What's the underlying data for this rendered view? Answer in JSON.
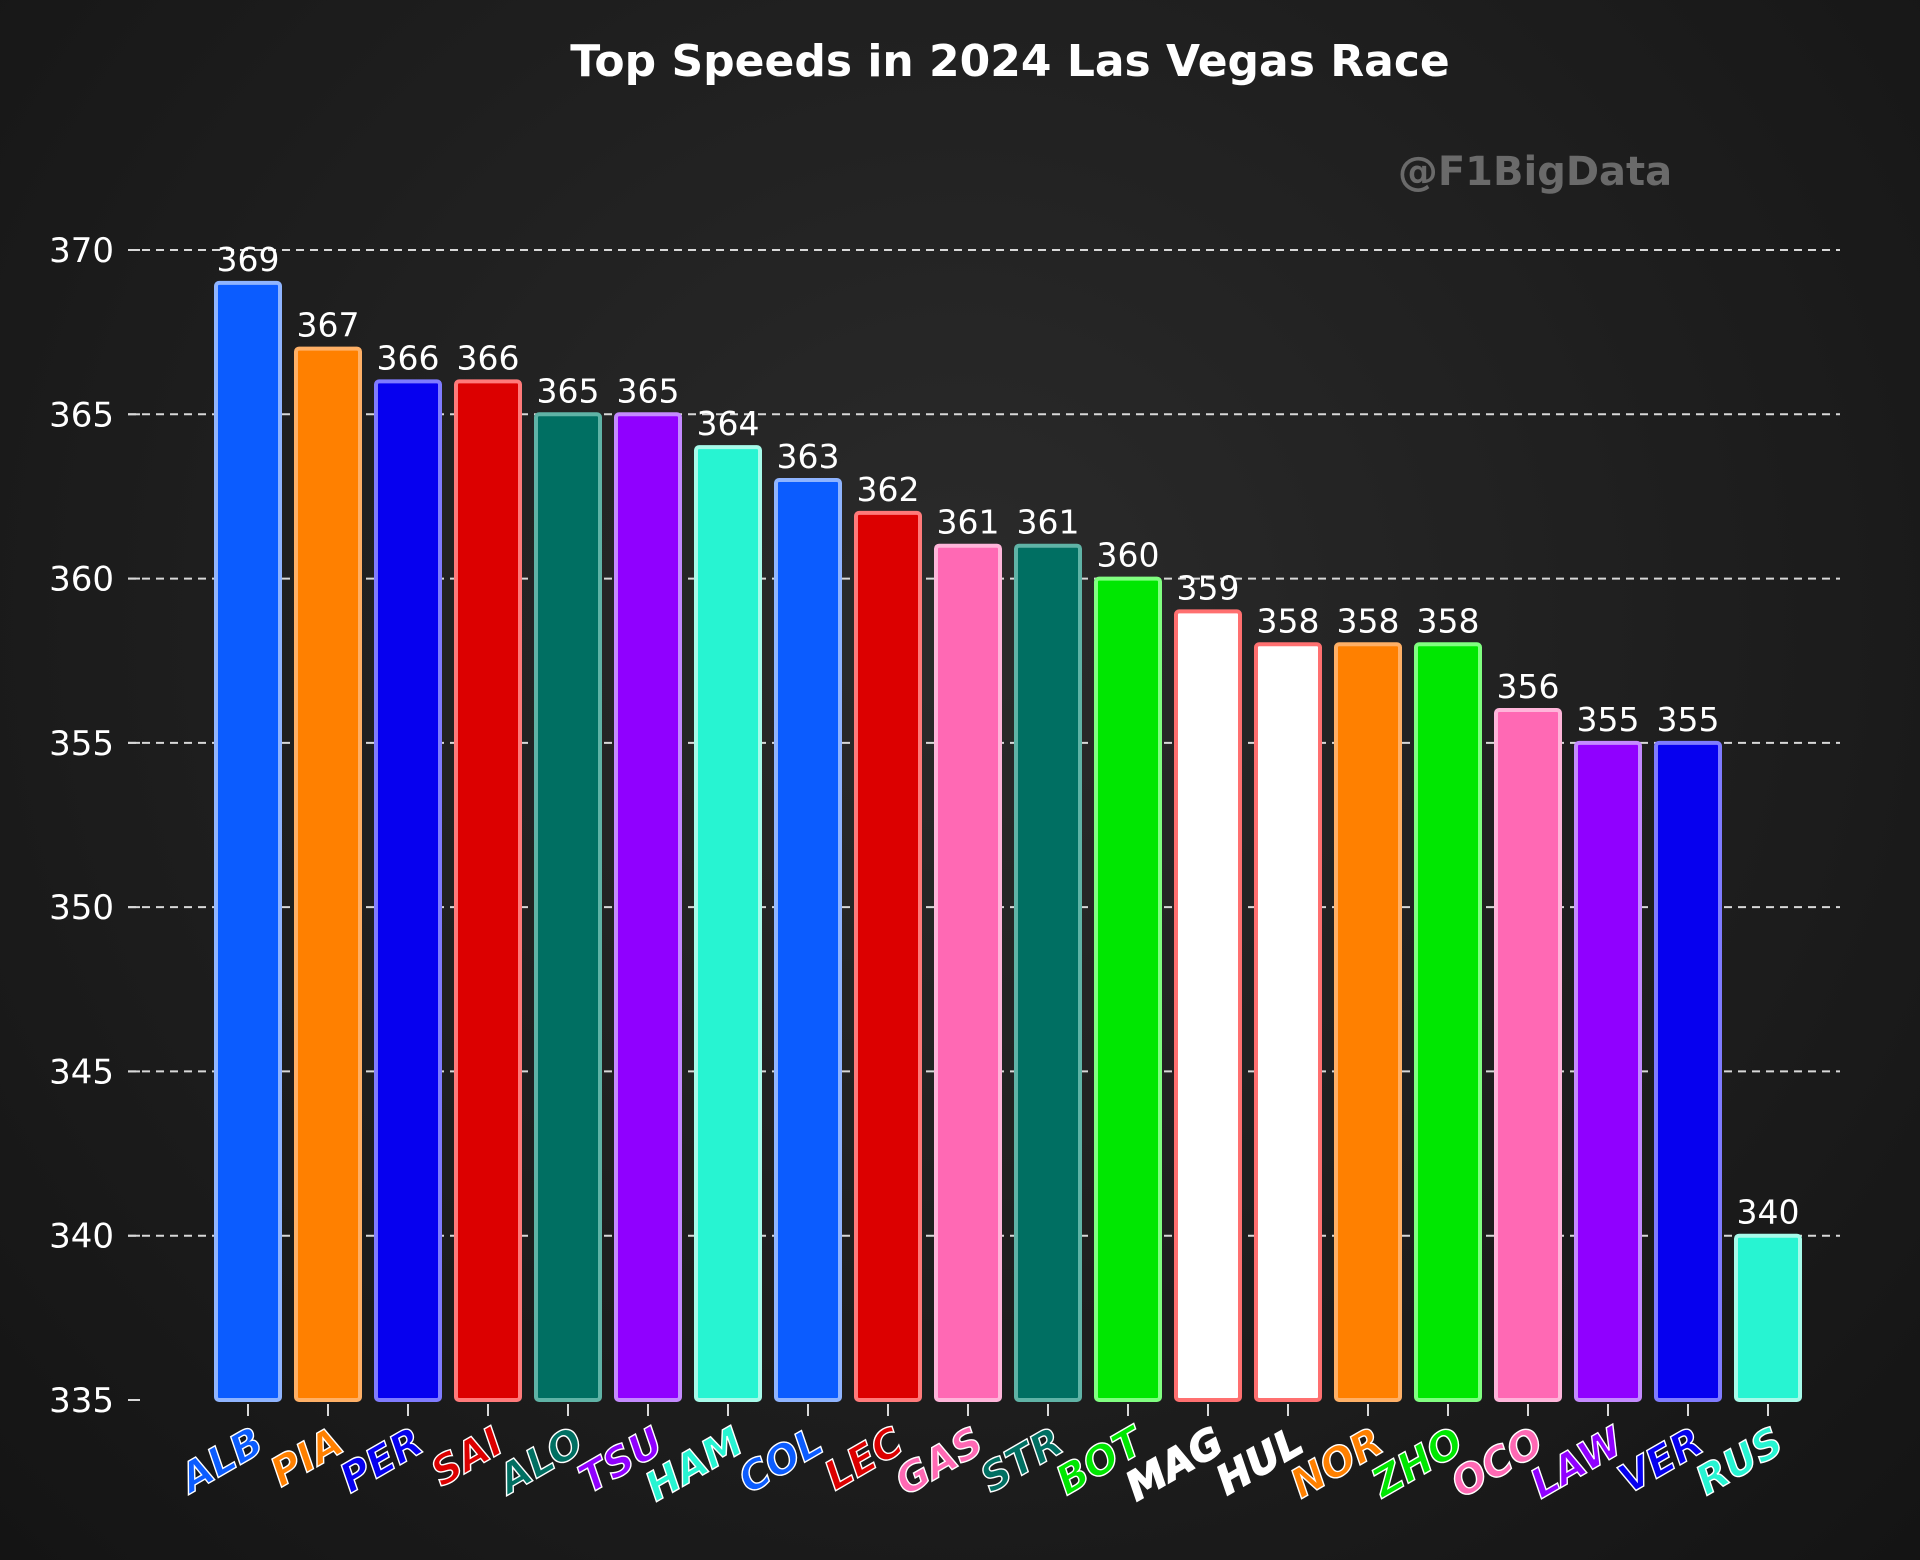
{
  "watermark": "@F1BigData",
  "chart_data": {
    "type": "bar",
    "title": "Top Speeds in 2024 Las Vegas Race",
    "xlabel": "",
    "ylabel": "",
    "ylim": [
      335,
      370
    ],
    "yticks": [
      335,
      340,
      345,
      350,
      355,
      360,
      365,
      370
    ],
    "grid": true,
    "categories": [
      "ALB",
      "PIA",
      "PER",
      "SAI",
      "ALO",
      "TSU",
      "HAM",
      "COL",
      "LEC",
      "GAS",
      "STR",
      "BOT",
      "MAG",
      "HUL",
      "NOR",
      "ZHO",
      "OCO",
      "LAW",
      "VER",
      "RUS"
    ],
    "values": [
      369,
      367,
      366,
      366,
      365,
      365,
      364,
      363,
      362,
      361,
      361,
      360,
      359,
      358,
      358,
      358,
      356,
      355,
      355,
      340
    ],
    "colors": [
      "#0b5cff",
      "#ff8000",
      "#0600ef",
      "#dc0000",
      "#006f62",
      "#9000ff",
      "#27f4d2",
      "#0b5cff",
      "#dc0000",
      "#ff69b4",
      "#006f62",
      "#00e701",
      "#ffffff",
      "#ffffff",
      "#ff8000",
      "#00e701",
      "#ff69b4",
      "#9000ff",
      "#0600ef",
      "#27f4d2"
    ],
    "edge_colors": [
      "#8fb4ff",
      "#ffb066",
      "#7f7bff",
      "#ff7a7a",
      "#5fb3a6",
      "#c48aff",
      "#a6fbea",
      "#8fb4ff",
      "#ff7a7a",
      "#ffb5da",
      "#5fb3a6",
      "#80ff80",
      "#ff7070",
      "#ff7070",
      "#ffb066",
      "#80ff80",
      "#ffb5da",
      "#c48aff",
      "#7f7bff",
      "#a6fbea"
    ]
  }
}
